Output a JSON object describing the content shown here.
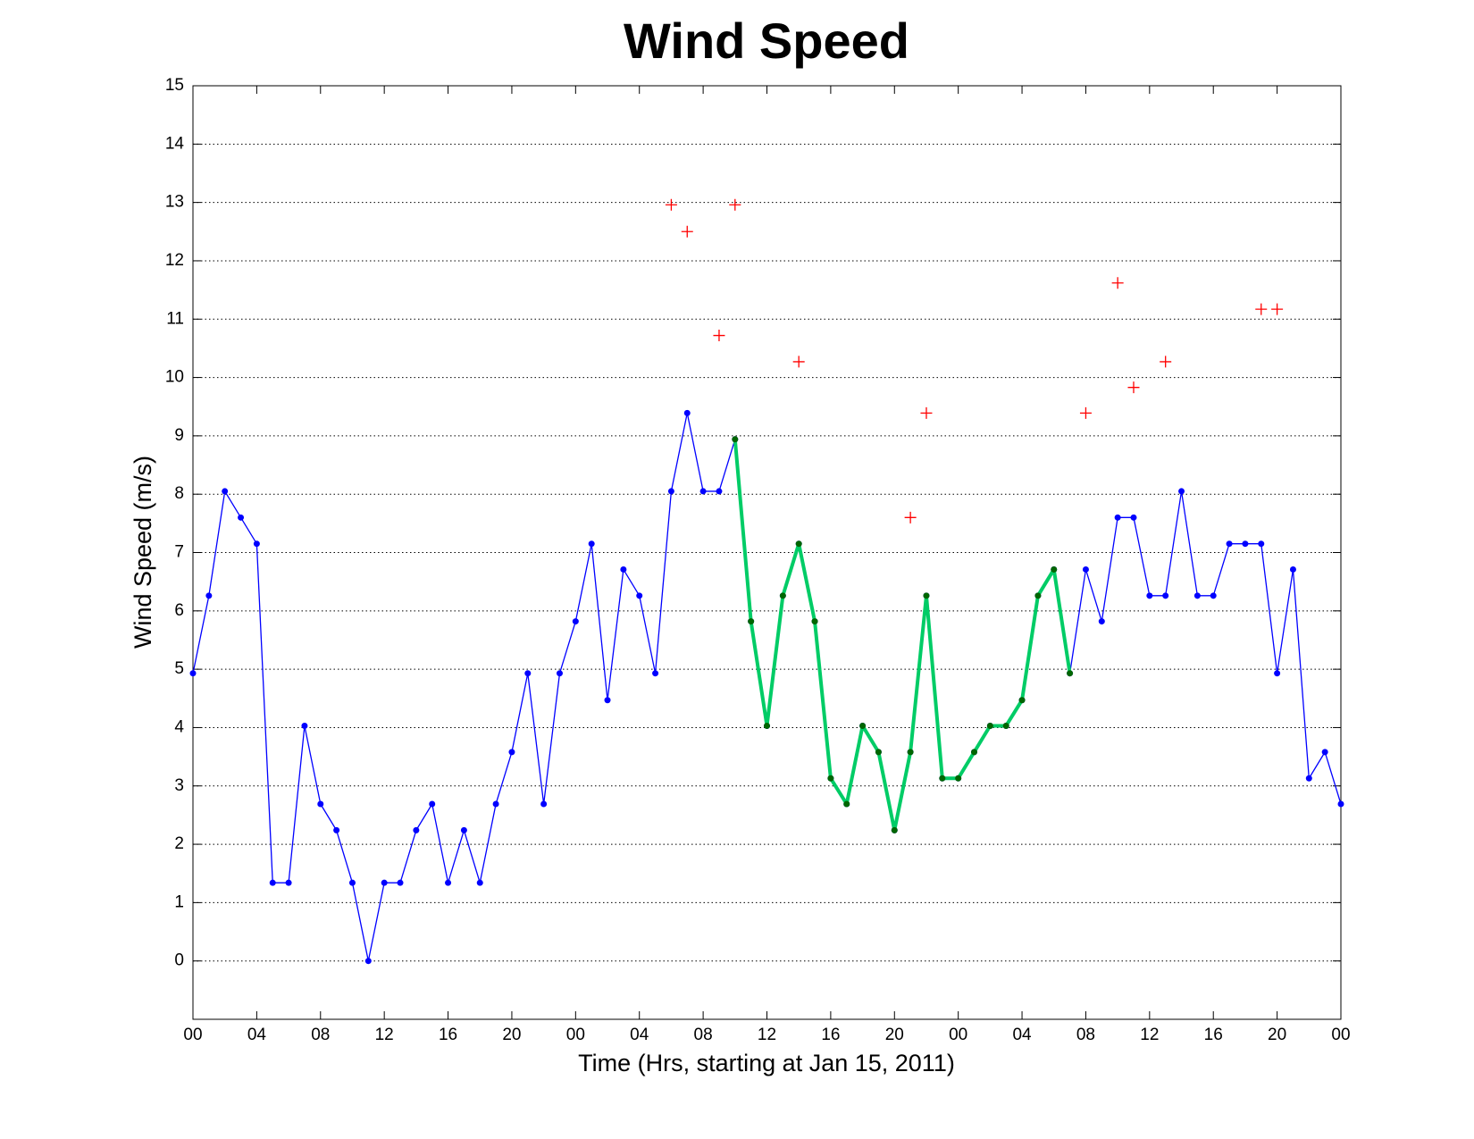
{
  "chart_data": {
    "type": "line",
    "title": "Wind Speed",
    "x_label": "Time (Hrs, starting at Jan 15, 2011)",
    "y_label": "Wind Speed (m/s)",
    "x": [
      0,
      1,
      2,
      3,
      4,
      5,
      6,
      7,
      8,
      9,
      10,
      11,
      12,
      13,
      14,
      15,
      16,
      17,
      18,
      19,
      20,
      21,
      22,
      23,
      24,
      25,
      26,
      27,
      28,
      29,
      30,
      31,
      32,
      33,
      34,
      35,
      36,
      37,
      38,
      39,
      40,
      41,
      42,
      43,
      44,
      45,
      46,
      47,
      48,
      49,
      50,
      51,
      52,
      53,
      54,
      55,
      56,
      57,
      58,
      59,
      60,
      61,
      62,
      63,
      64,
      65,
      66,
      67,
      68,
      69,
      70,
      71,
      72
    ],
    "series": [
      {
        "color": "#0000ff",
        "marker_color": "#0000ff",
        "style": "line",
        "line_width": 1.3,
        "values": [
          4.93,
          6.26,
          8.05,
          7.6,
          7.15,
          1.34,
          1.34,
          4.03,
          2.69,
          2.24,
          1.34,
          0,
          1.34,
          1.34,
          2.24,
          2.69,
          1.34,
          2.24,
          1.34,
          2.69,
          3.58,
          4.93,
          2.69,
          4.93,
          5.82,
          7.15,
          4.47,
          6.71,
          6.26,
          4.93,
          8.05,
          9.39,
          8.05,
          8.05,
          8.94,
          5.82,
          4.03,
          6.26,
          7.15,
          5.82,
          3.13,
          2.69,
          4.03,
          3.58,
          2.24,
          3.58,
          6.26,
          3.13,
          3.13,
          3.58,
          4.03,
          4.03,
          4.47,
          6.26,
          6.71,
          4.93,
          6.71,
          5.82,
          7.6,
          7.6,
          6.26,
          6.26,
          8.05,
          6.26,
          6.26,
          7.15,
          7.15,
          7.15,
          4.93,
          6.71,
          3.13,
          3.58,
          2.69
        ]
      },
      {
        "color": "#00cc66",
        "marker_color": "#006600",
        "style": "line",
        "line_width": 4,
        "values": [
          null,
          null,
          null,
          null,
          null,
          null,
          null,
          null,
          null,
          null,
          null,
          null,
          null,
          null,
          null,
          null,
          null,
          null,
          null,
          null,
          null,
          null,
          null,
          null,
          null,
          null,
          null,
          null,
          null,
          null,
          null,
          null,
          null,
          null,
          8.94,
          5.82,
          4.03,
          6.26,
          7.15,
          5.82,
          3.13,
          2.69,
          4.03,
          3.58,
          2.24,
          3.58,
          6.26,
          3.13,
          3.13,
          3.58,
          4.03,
          4.03,
          4.47,
          6.26,
          6.71,
          4.93,
          null,
          null,
          null,
          null,
          null,
          null,
          null,
          null,
          null,
          null,
          null,
          null,
          null,
          null,
          null,
          null,
          null
        ]
      },
      {
        "color": "#ff0000",
        "marker_color": "#ff0000",
        "style": "plus",
        "values": [
          null,
          null,
          null,
          null,
          null,
          null,
          null,
          null,
          null,
          null,
          null,
          null,
          null,
          null,
          null,
          null,
          null,
          null,
          null,
          null,
          null,
          null,
          null,
          null,
          null,
          null,
          null,
          null,
          null,
          null,
          12.96,
          12.5,
          null,
          10.72,
          12.96,
          null,
          null,
          null,
          10.27,
          null,
          null,
          null,
          null,
          null,
          null,
          7.6,
          9.39,
          null,
          null,
          null,
          null,
          null,
          null,
          null,
          null,
          null,
          9.39,
          null,
          11.62,
          9.83,
          null,
          10.27,
          null,
          null,
          null,
          null,
          null,
          11.17,
          11.17,
          null,
          null,
          null,
          null
        ]
      }
    ],
    "xlim": [
      0,
      72
    ],
    "xticks": [
      {
        "value": 0,
        "label": "00"
      },
      {
        "value": 4,
        "label": "04"
      },
      {
        "value": 8,
        "label": "08"
      },
      {
        "value": 12,
        "label": "12"
      },
      {
        "value": 16,
        "label": "16"
      },
      {
        "value": 20,
        "label": "20"
      },
      {
        "value": 24,
        "label": "00"
      },
      {
        "value": 28,
        "label": "04"
      },
      {
        "value": 32,
        "label": "08"
      },
      {
        "value": 36,
        "label": "12"
      },
      {
        "value": 40,
        "label": "16"
      },
      {
        "value": 44,
        "label": "20"
      },
      {
        "value": 48,
        "label": "00"
      },
      {
        "value": 52,
        "label": "04"
      },
      {
        "value": 56,
        "label": "08"
      },
      {
        "value": 60,
        "label": "12"
      },
      {
        "value": 64,
        "label": "16"
      },
      {
        "value": 68,
        "label": "20"
      },
      {
        "value": 72,
        "label": "00"
      }
    ],
    "ylim": [
      -1,
      15
    ],
    "yticks": [
      0,
      1,
      2,
      3,
      4,
      5,
      6,
      7,
      8,
      9,
      10,
      11,
      12,
      13,
      14,
      15
    ],
    "grid": true
  }
}
